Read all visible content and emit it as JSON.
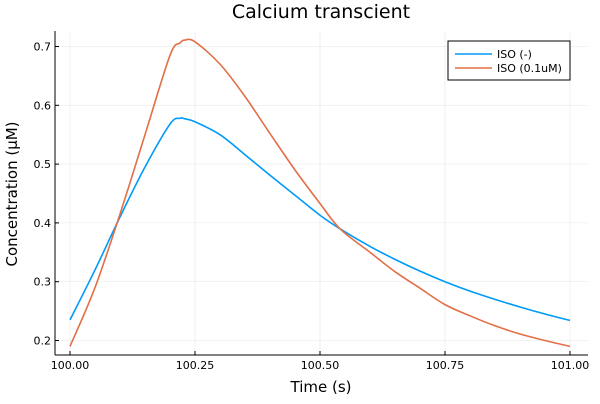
{
  "chart_data": {
    "type": "line",
    "title": "Calcium transcient",
    "xlabel": "Time (s)",
    "ylabel": "Concentration (μM)",
    "xlim": [
      99.98,
      101.02
    ],
    "ylim": [
      0.175,
      0.73
    ],
    "xticks": [
      100.0,
      100.25,
      100.5,
      100.75,
      101.0
    ],
    "xtick_labels": [
      "100.00",
      "100.25",
      "100.50",
      "100.75",
      "101.00"
    ],
    "yticks": [
      0.2,
      0.3,
      0.4,
      0.5,
      0.6,
      0.7
    ],
    "ytick_labels": [
      "0.2",
      "0.3",
      "0.4",
      "0.5",
      "0.6",
      "0.7"
    ],
    "grid": true,
    "legend_position": "top-right",
    "x": [
      100.0,
      100.05,
      100.1,
      100.15,
      100.2,
      100.22,
      100.23,
      100.25,
      100.3,
      100.35,
      100.4,
      100.45,
      100.5,
      100.54,
      100.6,
      100.65,
      100.7,
      100.75,
      100.8,
      100.85,
      100.9,
      100.95,
      101.0
    ],
    "series": [
      {
        "name": "ISO (-)",
        "color": "#009af9",
        "values": [
          0.235,
          0.32,
          0.41,
          0.495,
          0.568,
          0.578,
          0.577,
          0.572,
          0.55,
          0.516,
          0.481,
          0.447,
          0.413,
          0.39,
          0.36,
          0.338,
          0.318,
          0.3,
          0.284,
          0.27,
          0.257,
          0.245,
          0.234
        ]
      },
      {
        "name": "ISO (0.1uM)",
        "color": "#e26f46",
        "values": [
          0.19,
          0.29,
          0.415,
          0.55,
          0.685,
          0.706,
          0.711,
          0.708,
          0.67,
          0.615,
          0.552,
          0.49,
          0.433,
          0.39,
          0.35,
          0.317,
          0.289,
          0.261,
          0.242,
          0.225,
          0.211,
          0.2,
          0.19
        ]
      }
    ]
  }
}
